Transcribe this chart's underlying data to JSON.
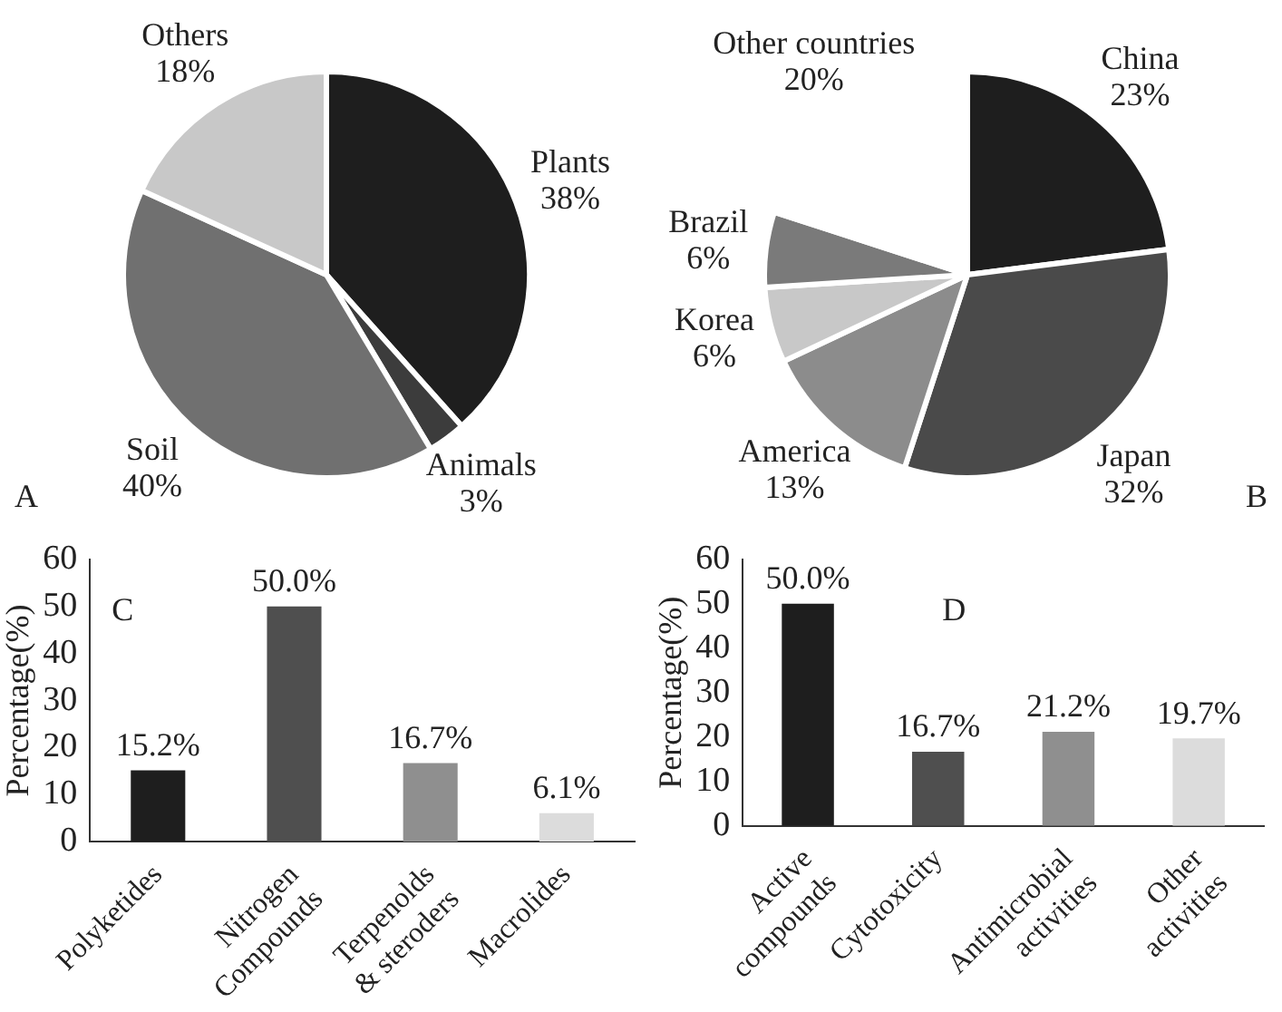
{
  "chart_data": [
    {
      "type": "pie",
      "annotations": [
        "A"
      ],
      "categories": [
        "Plants",
        "Animals",
        "Soil",
        "Others"
      ],
      "values": [
        38,
        3,
        40,
        18
      ],
      "value_labels": [
        "38%",
        "3%",
        "40%",
        "18%"
      ],
      "colors": [
        "#1e1e1e",
        "#3c3c3c",
        "#707070",
        "#c8c8c8"
      ]
    },
    {
      "type": "pie",
      "annotations": [
        "B"
      ],
      "categories": [
        "China",
        "Japan",
        "America",
        "Korea",
        "Brazil",
        "Other countries"
      ],
      "values": [
        23,
        32,
        13,
        6,
        6,
        20
      ],
      "value_labels": [
        "23%",
        "32%",
        "13%",
        "6%",
        "6%",
        "20%"
      ],
      "colors": [
        "#1e1e1e",
        "#4a4a4a",
        "#8c8c8c",
        "#c8c8c8",
        "#7a7a7a",
        "#ffffff"
      ]
    },
    {
      "type": "bar",
      "annotations": [
        "C"
      ],
      "ylabel": "Percentage(%)",
      "categories": [
        "Polyketides",
        "Nitrogen Compounds",
        "Terpenolds & steroders",
        "Macrolides"
      ],
      "values": [
        15.2,
        50.0,
        16.7,
        6.1
      ],
      "value_labels": [
        "15.2%",
        "50.0%",
        "16.7%",
        "6.1%"
      ],
      "colors": [
        "#1e1e1e",
        "#4f4f4f",
        "#8f8f8f",
        "#dcdcdc"
      ],
      "ylim": [
        0,
        60
      ],
      "yticks": [
        0,
        10,
        20,
        30,
        40,
        50,
        60
      ],
      "grid": false
    },
    {
      "type": "bar",
      "annotations": [
        "D"
      ],
      "ylabel": "Percentage(%)",
      "categories": [
        "Active compounds",
        "Cytotoxicity",
        "Antimicrobial activities",
        "Other activities"
      ],
      "values": [
        50.0,
        16.7,
        21.2,
        19.7
      ],
      "value_labels": [
        "50.0%",
        "16.7%",
        "21.2%",
        "19.7%"
      ],
      "colors": [
        "#1e1e1e",
        "#4f4f4f",
        "#8f8f8f",
        "#dcdcdc"
      ],
      "ylim": [
        0,
        60
      ],
      "yticks": [
        0,
        10,
        20,
        30,
        40,
        50,
        60
      ],
      "grid": false
    }
  ]
}
